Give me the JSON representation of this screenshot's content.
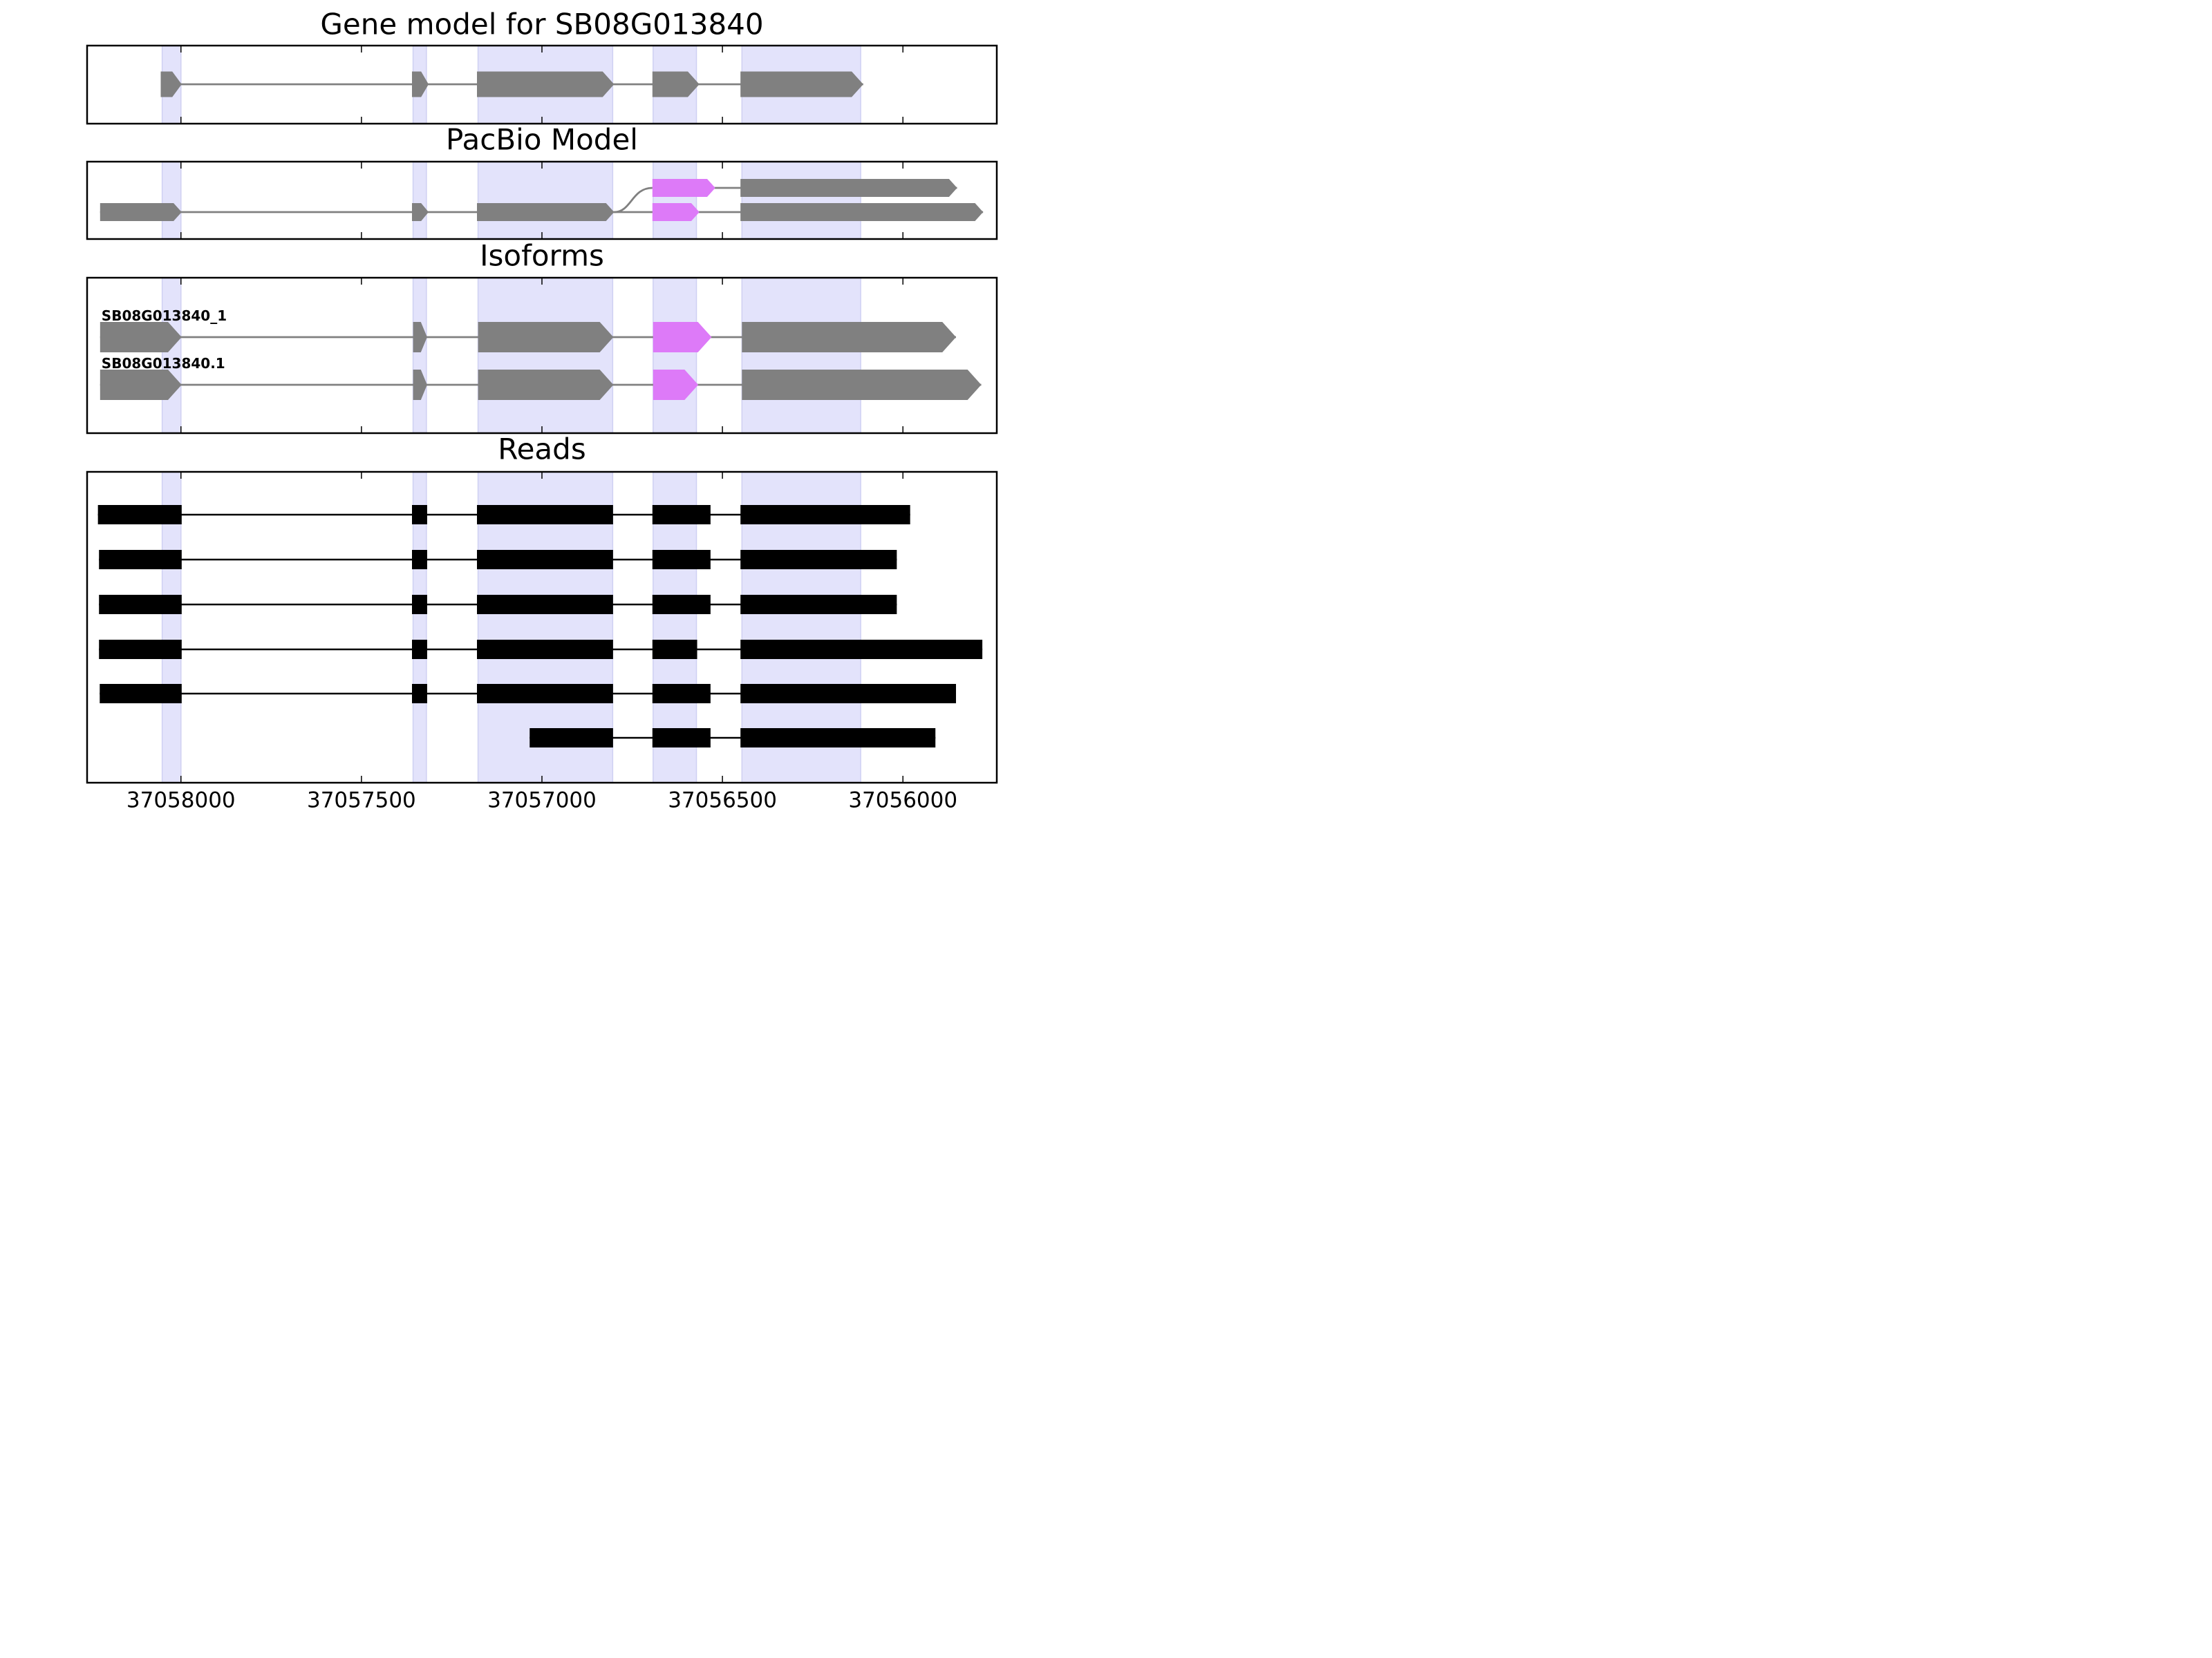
{
  "chart_data": {
    "type": "gene-structure",
    "x_axis": {
      "range": [
        37058260,
        37055740
      ],
      "reversed": true,
      "ticks": [
        37058000,
        37057500,
        37057000,
        37056500,
        37056000
      ],
      "tick_labels": [
        "37058000",
        "37057500",
        "37057000",
        "37056500",
        "37056000"
      ]
    },
    "highlight_regions": [
      [
        37058052,
        37058000
      ],
      [
        37057357,
        37057320
      ],
      [
        37057177,
        37056804
      ],
      [
        37056692,
        37056572
      ],
      [
        37056446,
        37056117
      ]
    ],
    "colors": {
      "highlight": "#e3e3fb",
      "highlight_edge": "#cfd0f2",
      "exon": "#808080",
      "intron": "#808080",
      "alt_exon": "#dd7af8",
      "read": "#000000"
    },
    "panels": [
      {
        "id": "gene-model",
        "title": "Gene model for SB08G013840",
        "tracks": [
          {
            "row": 0,
            "exons": [
              {
                "start": 37058056,
                "end": 37057998
              },
              {
                "start": 37057360,
                "end": 37057314
              },
              {
                "start": 37057180,
                "end": 37056800
              },
              {
                "start": 37056694,
                "end": 37056564
              },
              {
                "start": 37056450,
                "end": 37056110
              }
            ]
          }
        ]
      },
      {
        "id": "pacbio-model",
        "title": "PacBio Model",
        "tracks": [
          {
            "row": 0,
            "branch_from": 1,
            "exons": [
              {
                "start": 37056694,
                "end": 37056520,
                "alt": true
              },
              {
                "start": 37056450,
                "end": 37055850
              }
            ]
          },
          {
            "row": 1,
            "exons": [
              {
                "start": 37058224,
                "end": 37057998
              },
              {
                "start": 37057360,
                "end": 37057314
              },
              {
                "start": 37057180,
                "end": 37056800
              },
              {
                "start": 37056694,
                "end": 37056564,
                "alt": true
              },
              {
                "start": 37056450,
                "end": 37055778
              }
            ]
          }
        ]
      },
      {
        "id": "isoforms",
        "title": "Isoforms",
        "tracks": [
          {
            "row": 0,
            "label": "SB08G013840_1",
            "exons": [
              {
                "start": 37058224,
                "end": 37057998
              },
              {
                "start": 37057357,
                "end": 37057318
              },
              {
                "start": 37057177,
                "end": 37056802
              },
              {
                "start": 37056692,
                "end": 37056530,
                "alt": true
              },
              {
                "start": 37056446,
                "end": 37055853
              }
            ]
          },
          {
            "row": 1,
            "label": "SB08G013840.1",
            "exons": [
              {
                "start": 37058224,
                "end": 37057998
              },
              {
                "start": 37057357,
                "end": 37057318
              },
              {
                "start": 37057177,
                "end": 37056802
              },
              {
                "start": 37056692,
                "end": 37056567,
                "alt": true
              },
              {
                "start": 37056446,
                "end": 37055783
              }
            ]
          }
        ]
      },
      {
        "id": "reads",
        "title": "Reads",
        "style": "read",
        "tracks": [
          {
            "row": 0,
            "exons": [
              {
                "start": 37058230,
                "end": 37057998
              },
              {
                "start": 37057360,
                "end": 37057318
              },
              {
                "start": 37057180,
                "end": 37056803
              },
              {
                "start": 37056694,
                "end": 37056533
              },
              {
                "start": 37056450,
                "end": 37055980
              }
            ]
          },
          {
            "row": 1,
            "exons": [
              {
                "start": 37058227,
                "end": 37057998
              },
              {
                "start": 37057360,
                "end": 37057318
              },
              {
                "start": 37057180,
                "end": 37056803
              },
              {
                "start": 37056694,
                "end": 37056533
              },
              {
                "start": 37056450,
                "end": 37056017
              }
            ]
          },
          {
            "row": 2,
            "exons": [
              {
                "start": 37058227,
                "end": 37057998
              },
              {
                "start": 37057360,
                "end": 37057318
              },
              {
                "start": 37057180,
                "end": 37056803
              },
              {
                "start": 37056694,
                "end": 37056533
              },
              {
                "start": 37056450,
                "end": 37056017
              }
            ]
          },
          {
            "row": 3,
            "exons": [
              {
                "start": 37058227,
                "end": 37057998
              },
              {
                "start": 37057360,
                "end": 37057318
              },
              {
                "start": 37057180,
                "end": 37056803
              },
              {
                "start": 37056694,
                "end": 37056570
              },
              {
                "start": 37056450,
                "end": 37055780
              }
            ]
          },
          {
            "row": 4,
            "exons": [
              {
                "start": 37058225,
                "end": 37057998
              },
              {
                "start": 37057360,
                "end": 37057318
              },
              {
                "start": 37057180,
                "end": 37056803
              },
              {
                "start": 37056694,
                "end": 37056533
              },
              {
                "start": 37056450,
                "end": 37055853
              }
            ]
          },
          {
            "row": 5,
            "exons": [
              {
                "start": 37057034,
                "end": 37056803
              },
              {
                "start": 37056694,
                "end": 37056533
              },
              {
                "start": 37056450,
                "end": 37055910
              }
            ]
          }
        ]
      }
    ]
  }
}
